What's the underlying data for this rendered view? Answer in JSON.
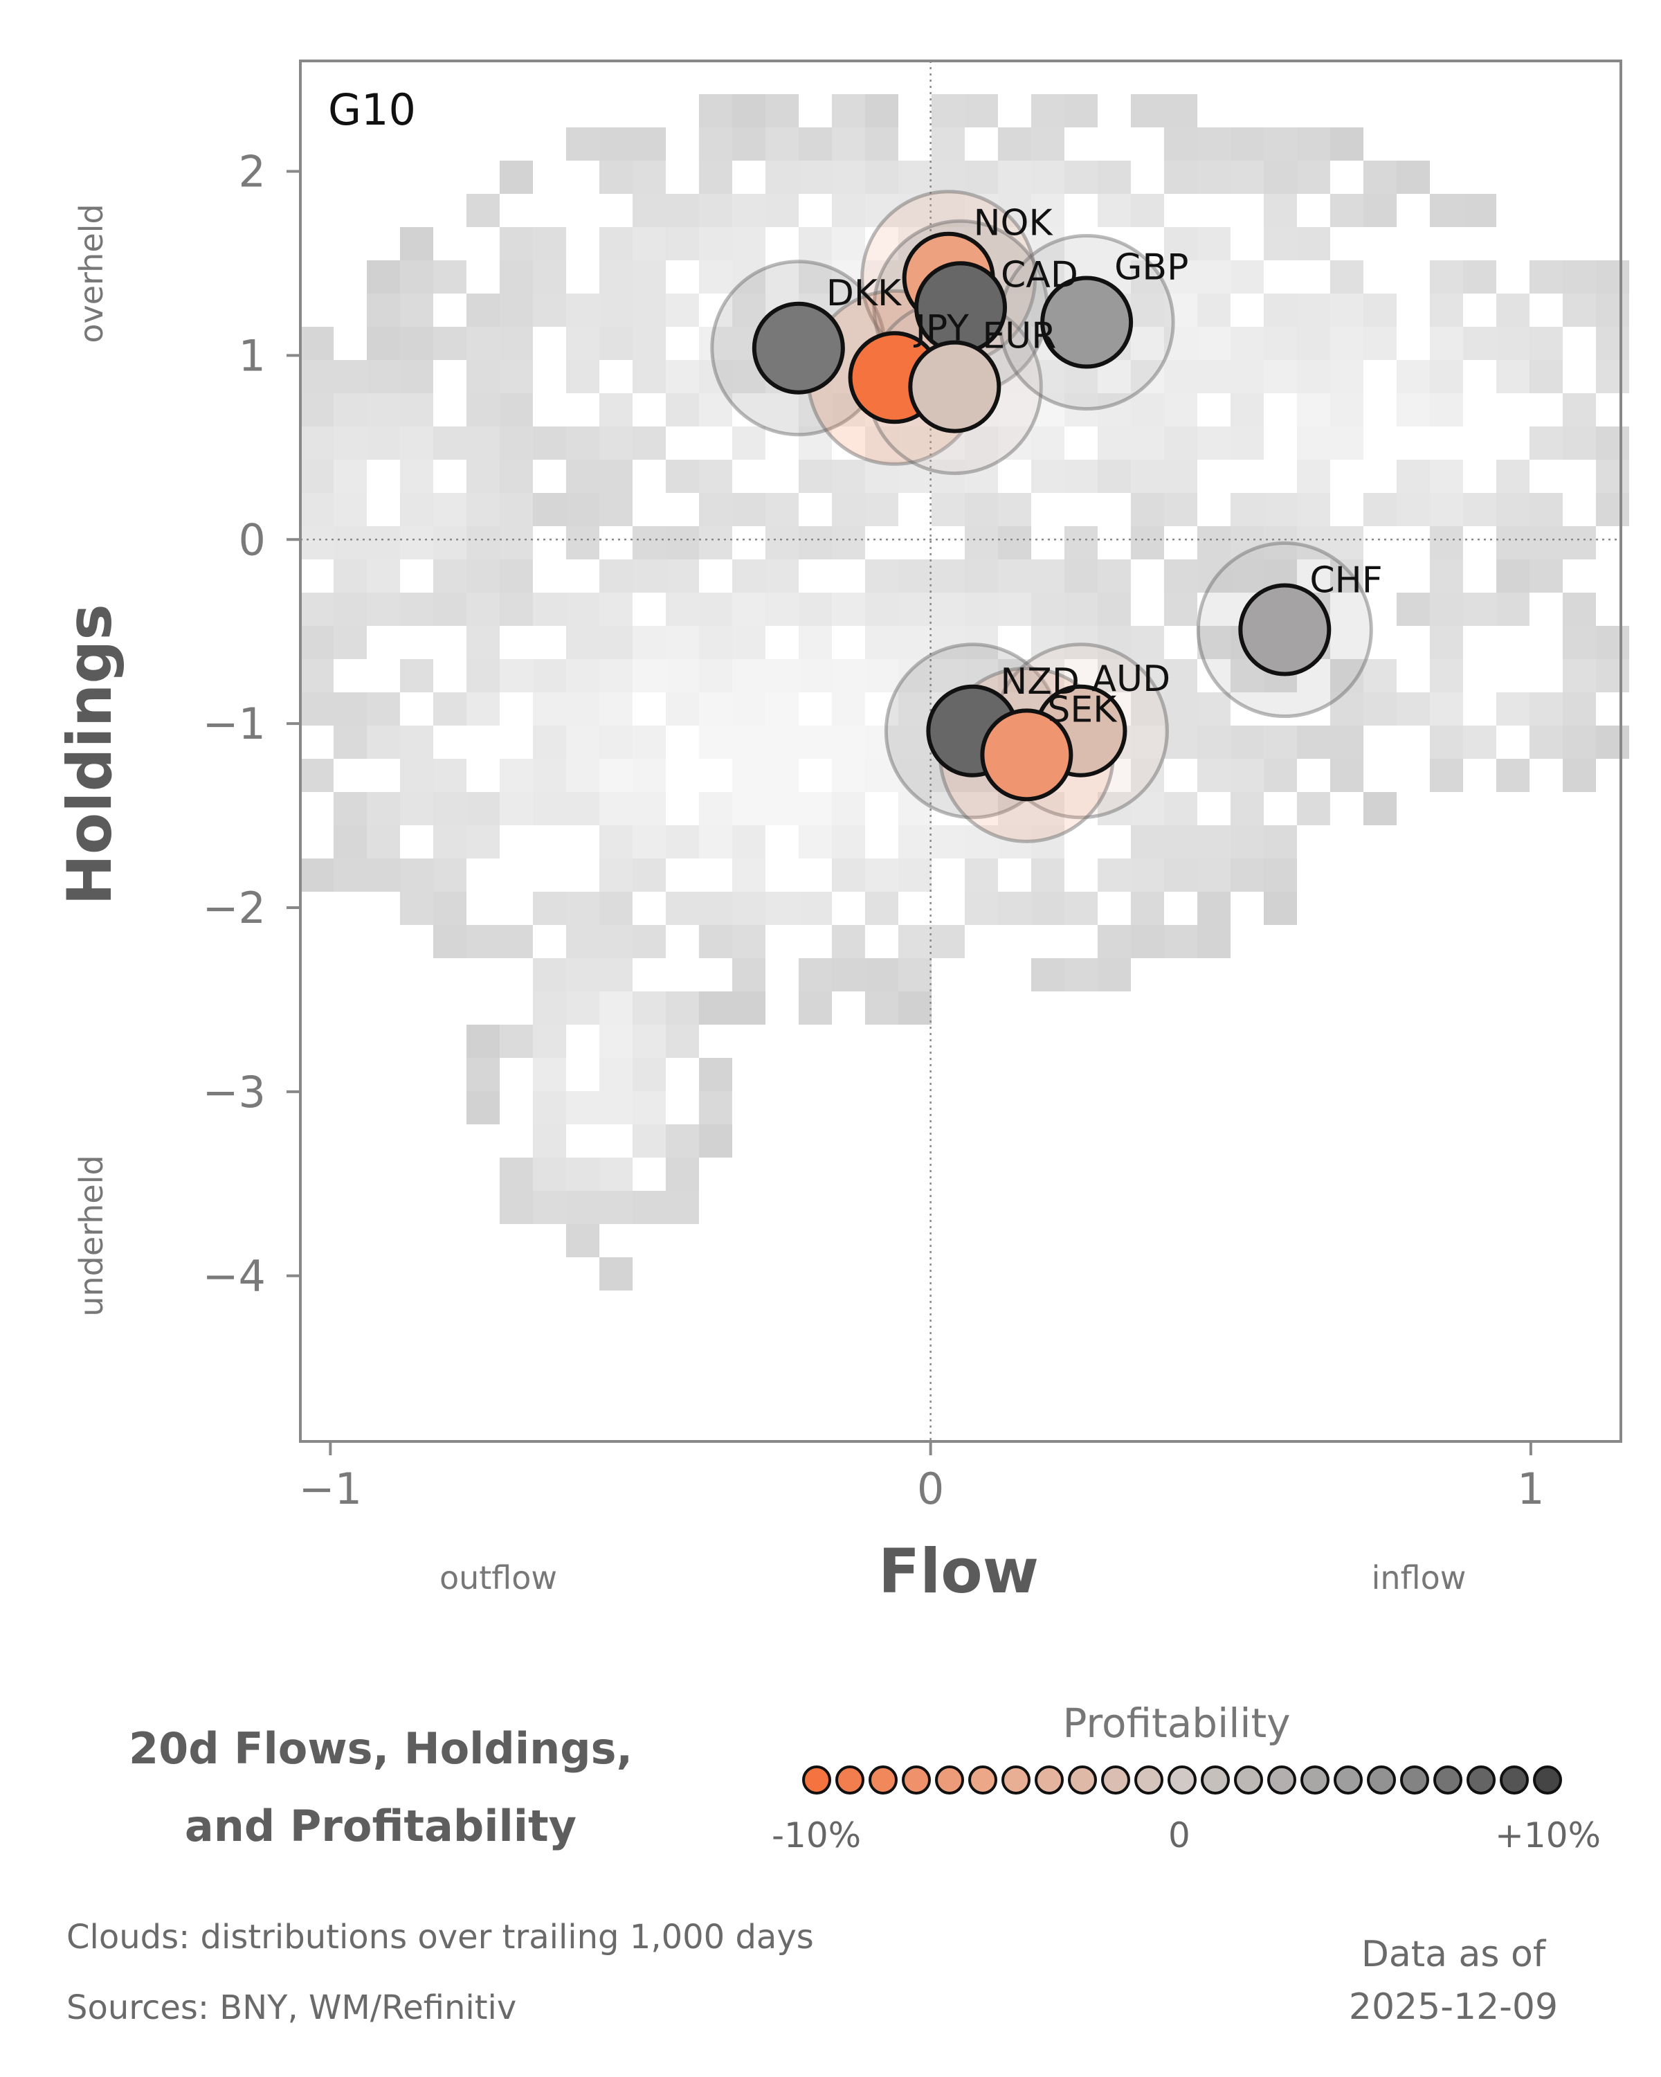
{
  "chart_data": {
    "type": "scatter",
    "panel_label": "G10",
    "xlabel": "Flow",
    "ylabel": "Holdings",
    "xlim": [
      -1.05,
      1.15
    ],
    "ylim": [
      -4.9,
      2.6
    ],
    "x_ticks": [
      -1,
      0,
      1
    ],
    "y_ticks": [
      2,
      1,
      0,
      -1,
      -2,
      -3,
      -4
    ],
    "x_side_labels": {
      "left": "outflow",
      "right": "inflow"
    },
    "y_side_labels": {
      "top": "overheld",
      "bottom": "underheld"
    },
    "reference_lines": {
      "x": 0,
      "y": 0,
      "style": "dotted"
    },
    "background": "grey 2D histogram clouds: distributions over trailing 1,000 days",
    "points": [
      {
        "label": "DKK",
        "x": -0.22,
        "y": 1.04,
        "profitability": 7
      },
      {
        "label": "NOK",
        "x": 0.03,
        "y": 1.42,
        "profitability": -6
      },
      {
        "label": "CAD",
        "x": 0.05,
        "y": 1.26,
        "profitability": 8
      },
      {
        "label": "JPY",
        "x": -0.06,
        "y": 0.88,
        "profitability": -10
      },
      {
        "label": "EUR",
        "x": 0.04,
        "y": 0.83,
        "profitability": -1
      },
      {
        "label": "GBP",
        "x": 0.26,
        "y": 1.18,
        "profitability": 5
      },
      {
        "label": "CHF",
        "x": 0.59,
        "y": -0.49,
        "profitability": 4
      },
      {
        "label": "NZD",
        "x": 0.07,
        "y": -1.04,
        "profitability": 8
      },
      {
        "label": "AUD",
        "x": 0.25,
        "y": -1.04,
        "profitability": -2
      },
      {
        "label": "SEK",
        "x": 0.16,
        "y": -1.17,
        "profitability": -7
      }
    ],
    "legend": {
      "title": "Profitability",
      "min_label": "-10%",
      "mid_label": "0",
      "max_label": "+10%",
      "colors": [
        "#f4733f",
        "#ebac8f",
        "#d0c9c5",
        "#9a9a9a",
        "#454545"
      ]
    }
  },
  "footer": {
    "title_line1": "20d Flows, Holdings,",
    "title_line2": "and Profitability",
    "clouds_note": "Clouds:  distributions over trailing 1,000 days",
    "sources_note": "Sources:  BNY, WM/Refinitiv",
    "asof_line1": "Data as of",
    "asof_line2": "2025-12-09"
  }
}
